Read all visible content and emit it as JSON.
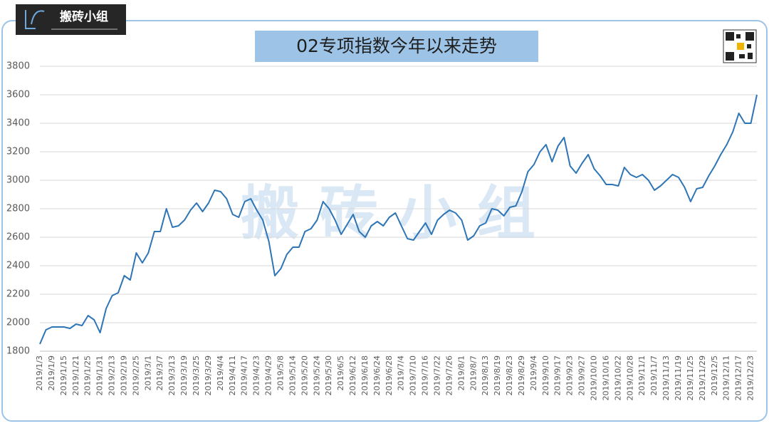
{
  "logo": "搬砖小组",
  "watermark": "搬 砖 小 组",
  "chart_data": {
    "type": "line",
    "title": "02专项指数今年以来走势",
    "categories": [
      "2019/1/3",
      null,
      "2019/1/9",
      null,
      "2019/1/15",
      null,
      "2019/1/21",
      null,
      "2019/1/25",
      null,
      "2019/1/31",
      null,
      "2019/2/13",
      null,
      "2019/2/19",
      null,
      "2019/2/25",
      null,
      "2019/3/1",
      null,
      "2019/3/7",
      null,
      "2019/3/13",
      null,
      "2019/3/19",
      null,
      "2019/3/25",
      null,
      "2019/3/29",
      null,
      "2019/4/4",
      null,
      "2019/4/11",
      null,
      "2019/4/17",
      null,
      "2019/4/23",
      null,
      "2019/4/29",
      null,
      "2019/5/8",
      null,
      "2019/5/14",
      null,
      "2019/5/20",
      null,
      "2019/5/24",
      null,
      "2019/5/30",
      null,
      "2019/6/5",
      null,
      "2019/6/12",
      null,
      "2019/6/18",
      null,
      "2019/6/24",
      null,
      "2019/6/28",
      null,
      "2019/7/4",
      null,
      "2019/7/10",
      null,
      "2019/7/16",
      null,
      "2019/7/22",
      null,
      "2019/7/26",
      null,
      "2019/8/1",
      null,
      "2019/8/7",
      null,
      "2019/8/13",
      null,
      "2019/8/19",
      null,
      "2019/8/23",
      null,
      "2019/8/29",
      null,
      "2019/9/4",
      null,
      "2019/9/10",
      null,
      "2019/9/17",
      null,
      "2019/9/23",
      null,
      "2019/9/27",
      null,
      "2019/10/10",
      null,
      "2019/10/16",
      null,
      "2019/10/22",
      null,
      "2019/10/28",
      null,
      "2019/11/1",
      null,
      "2019/11/7",
      null,
      "2019/11/13",
      null,
      "2019/11/19",
      null,
      "2019/11/25",
      null,
      "2019/11/29",
      null,
      "2019/12/5",
      null,
      "2019/12/11",
      null,
      "2019/12/17",
      null,
      "2019/12/23",
      null
    ],
    "series": [
      {
        "color": "#2e75b6",
        "values": [
          1850,
          1950,
          1970,
          1970,
          1970,
          1960,
          1990,
          1980,
          2050,
          2020,
          1930,
          2100,
          2190,
          2210,
          2330,
          2300,
          2490,
          2420,
          2490,
          2640,
          2640,
          2800,
          2670,
          2680,
          2720,
          2790,
          2840,
          2780,
          2840,
          2930,
          2920,
          2870,
          2760,
          2740,
          2850,
          2870,
          2790,
          2720,
          2570,
          2330,
          2380,
          2480,
          2530,
          2530,
          2640,
          2660,
          2720,
          2850,
          2800,
          2720,
          2620,
          2690,
          2760,
          2640,
          2600,
          2680,
          2710,
          2680,
          2740,
          2770,
          2680,
          2590,
          2580,
          2640,
          2700,
          2620,
          2720,
          2760,
          2790,
          2770,
          2720,
          2580,
          2610,
          2680,
          2700,
          2800,
          2790,
          2750,
          2810,
          2820,
          2920,
          3060,
          3110,
          3200,
          3250,
          3130,
          3240,
          3300,
          3100,
          3050,
          3120,
          3180,
          3080,
          3030,
          2970,
          2970,
          2960,
          3090,
          3040,
          3020,
          3040,
          3000,
          2930,
          2960,
          3000,
          3040,
          3020,
          2950,
          2850,
          2940,
          2950,
          3030,
          3100,
          3180,
          3250,
          3340,
          3470,
          3400,
          3400,
          3600
        ]
      }
    ],
    "ylim": [
      1800,
      3800
    ],
    "yticks": [
      1800,
      2000,
      2200,
      2400,
      2600,
      2800,
      3000,
      3200,
      3400,
      3600,
      3800
    ],
    "grid": true
  }
}
